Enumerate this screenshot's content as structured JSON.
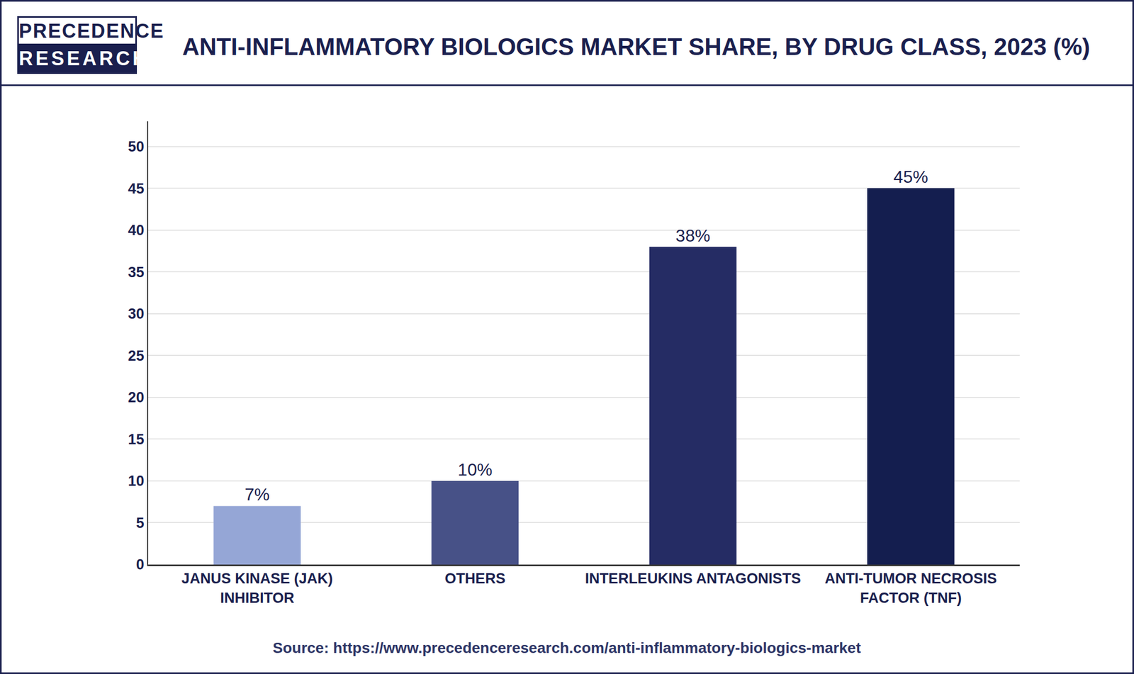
{
  "chart_data": {
    "type": "bar",
    "title": "ANTI-INFLAMMATORY BIOLOGICS MARKET SHARE, BY DRUG CLASS, 2023 (%)",
    "logo": [
      "PRECEDENCE",
      "RESEARCH"
    ],
    "source": "Source: https://www.precedenceresearch.com/anti-inflammatory-biologics-market",
    "categories": [
      "JANUS KINASE (JAK) INHIBITOR",
      "OTHERS",
      "INTERLEUKINS ANTAGONISTS",
      "ANTI-TUMOR NECROSIS FACTOR (TNF)"
    ],
    "values": [
      7,
      10,
      38,
      45
    ],
    "value_labels": [
      "7%",
      "10%",
      "38%",
      "45%"
    ],
    "colors": [
      "#95a6d6",
      "#475187",
      "#252c64",
      "#141e4f"
    ],
    "ylim": [
      0,
      53
    ],
    "yticks": [
      0,
      5,
      10,
      15,
      20,
      25,
      30,
      35,
      40,
      45,
      50
    ],
    "grid": true,
    "data_labels": true
  }
}
